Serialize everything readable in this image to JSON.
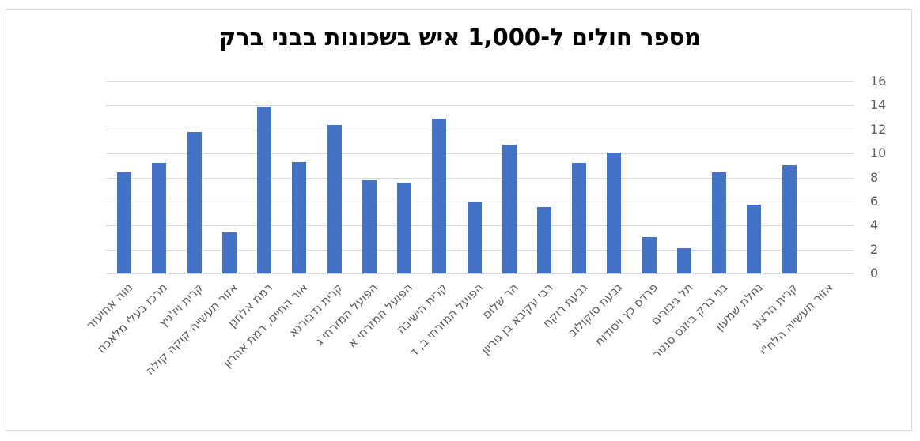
{
  "chart_data": {
    "type": "bar",
    "title": "מספר חולים ל-1,000 איש בשכונות בבני ברק",
    "xlabel": "",
    "ylabel": "",
    "ylim": [
      0,
      16
    ],
    "yticks": [
      "0",
      "2",
      "4",
      "6",
      "8",
      "10",
      "12",
      "14",
      "16"
    ],
    "grid": true,
    "legend": null,
    "y_axis_position": "right",
    "bar_color": "#4472c4",
    "categories": [
      "נווה אחיעזר",
      "מרכז בעלי מלאכה",
      "קרית ויז'ניץ",
      "אזור תעשייה קוקה קולה",
      "רמת אלחנן",
      "אור החיים, רמת אהרון",
      "קרית נדבורנא",
      "הפועל המזרחי ג",
      "הפועל המזרחי א",
      "קרית הישיבה",
      "הפועל המזרחי ב, ד",
      "הר שלום",
      "רבי עקיבא בן גוריון",
      "גבעת רוקח",
      "גבעת סוקולוב",
      "פרדס כץ ויסודות",
      "תל גיבורים",
      "בני ברק ביזנס סנטר",
      "נחלת שמעון",
      "קרית הרצוג",
      "אזור תעשייה הלח\"י"
    ],
    "values": [
      8.4,
      9.2,
      11.8,
      3.4,
      13.9,
      9.3,
      12.4,
      7.8,
      7.6,
      12.9,
      5.9,
      10.7,
      5.5,
      9.2,
      10.1,
      3.0,
      2.1,
      8.4,
      5.7,
      9.0,
      0
    ]
  }
}
